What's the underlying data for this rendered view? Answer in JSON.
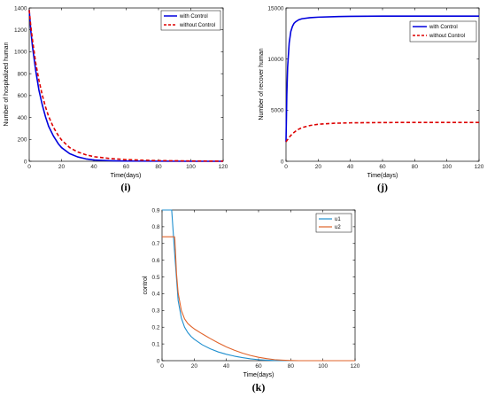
{
  "chart_data": [
    {
      "type": "line",
      "panel_label": "(i)",
      "xlabel": "Time(days)",
      "ylabel": "Number of hospitalized human",
      "xlim": [
        0,
        120
      ],
      "ylim": [
        0,
        1400
      ],
      "xticks": [
        0,
        20,
        40,
        60,
        80,
        100,
        120
      ],
      "yticks": [
        0,
        200,
        400,
        600,
        800,
        1000,
        1200,
        1400
      ],
      "legend_position": "top-right",
      "grid": false,
      "series": [
        {
          "name": "with Control",
          "color": "#0000dd",
          "style": "solid",
          "x": [
            0,
            1,
            2,
            4,
            6,
            8,
            10,
            12,
            15,
            18,
            20,
            25,
            30,
            35,
            40,
            50,
            60,
            80,
            100,
            120
          ],
          "y": [
            1380,
            1190,
            1050,
            830,
            650,
            520,
            410,
            320,
            230,
            160,
            125,
            70,
            40,
            22,
            12,
            5,
            2,
            1,
            0,
            0
          ]
        },
        {
          "name": "without Control",
          "color": "#dd0000",
          "style": "dashed",
          "x": [
            0,
            1,
            2,
            4,
            6,
            8,
            10,
            12,
            15,
            18,
            20,
            25,
            30,
            35,
            40,
            50,
            60,
            80,
            100,
            120
          ],
          "y": [
            1380,
            1230,
            1110,
            900,
            740,
            610,
            500,
            410,
            310,
            235,
            195,
            125,
            85,
            60,
            42,
            25,
            15,
            6,
            3,
            1
          ]
        }
      ]
    },
    {
      "type": "line",
      "panel_label": "(j)",
      "xlabel": "Time(days)",
      "ylabel": "Number of recover human",
      "xlim": [
        0,
        120
      ],
      "ylim": [
        0,
        15000
      ],
      "xticks": [
        0,
        20,
        40,
        60,
        80,
        100,
        120
      ],
      "yticks": [
        0,
        5000,
        10000,
        15000
      ],
      "legend_position": "top-right",
      "grid": false,
      "series": [
        {
          "name": "with Control",
          "color": "#0000dd",
          "style": "solid",
          "x": [
            0,
            0.5,
            1,
            2,
            3,
            4,
            5,
            6,
            8,
            10,
            15,
            20,
            30,
            40,
            60,
            80,
            100,
            120
          ],
          "y": [
            1900,
            6500,
            9200,
            11600,
            12700,
            13200,
            13500,
            13650,
            13850,
            13950,
            14050,
            14100,
            14150,
            14180,
            14200,
            14200,
            14200,
            14200
          ]
        },
        {
          "name": "without Control",
          "color": "#dd0000",
          "style": "dashed",
          "x": [
            0,
            2,
            4,
            6,
            8,
            10,
            15,
            20,
            30,
            40,
            60,
            80,
            100,
            120
          ],
          "y": [
            1900,
            2350,
            2700,
            2950,
            3150,
            3300,
            3500,
            3620,
            3720,
            3760,
            3790,
            3800,
            3800,
            3800
          ]
        }
      ]
    },
    {
      "type": "line",
      "panel_label": "(k)",
      "xlabel": "Time(days)",
      "ylabel": "control",
      "xlim": [
        0,
        120
      ],
      "ylim": [
        0,
        0.9
      ],
      "xticks": [
        0,
        20,
        40,
        60,
        80,
        100,
        120
      ],
      "yticks": [
        0,
        0.1,
        0.2,
        0.3,
        0.4,
        0.5,
        0.6,
        0.7,
        0.8,
        0.9
      ],
      "legend_position": "top-right",
      "grid": false,
      "series": [
        {
          "name": "u1",
          "color": "#1f8fcf",
          "style": "solid",
          "x": [
            0,
            2,
            4,
            6,
            8,
            10,
            12,
            14,
            16,
            18,
            20,
            25,
            30,
            35,
            40,
            45,
            50,
            55,
            60,
            65,
            70,
            80,
            100,
            120
          ],
          "y": [
            0.9,
            0.9,
            0.9,
            0.9,
            0.62,
            0.36,
            0.255,
            0.2,
            0.168,
            0.145,
            0.128,
            0.095,
            0.071,
            0.052,
            0.038,
            0.027,
            0.018,
            0.011,
            0.006,
            0.003,
            0.001,
            0,
            0,
            0
          ]
        },
        {
          "name": "u2",
          "color": "#e0632a",
          "style": "solid",
          "x": [
            0,
            2,
            4,
            6,
            7.8,
            8,
            9,
            10,
            12,
            14,
            16,
            18,
            20,
            25,
            30,
            35,
            40,
            45,
            50,
            55,
            60,
            65,
            70,
            75,
            80,
            85,
            90,
            100,
            120
          ],
          "y": [
            0.74,
            0.74,
            0.74,
            0.74,
            0.74,
            0.72,
            0.52,
            0.405,
            0.3,
            0.25,
            0.222,
            0.205,
            0.19,
            0.16,
            0.132,
            0.106,
            0.082,
            0.062,
            0.045,
            0.031,
            0.02,
            0.012,
            0.006,
            0.003,
            0.001,
            0,
            0,
            0,
            0
          ]
        }
      ]
    }
  ]
}
